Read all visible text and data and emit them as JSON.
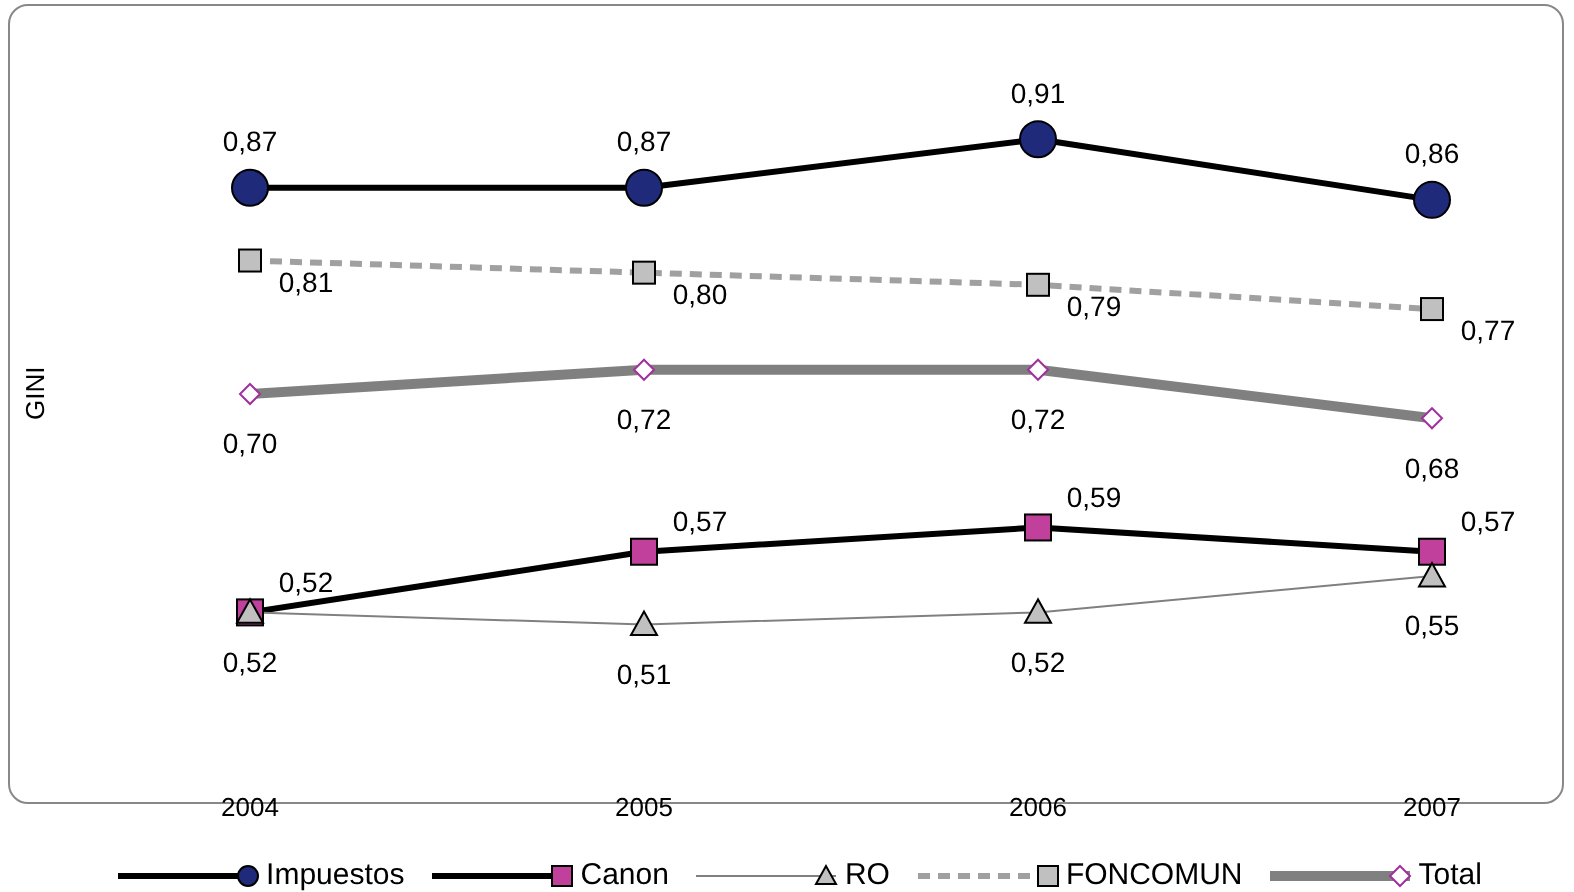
{
  "chart_data": {
    "type": "line",
    "ylabel": "GINI",
    "categories": [
      "2004",
      "2005",
      "2006",
      "2007"
    ],
    "tick_labels": "x",
    "legend": "bottom",
    "line_style": "solid",
    "series": [
      {
        "name": "Impuestos",
        "color": "#1f2a7a",
        "marker": "circle",
        "values": [
          0.87,
          0.87,
          0.91,
          0.86
        ],
        "value_labels": [
          "0,87",
          "0,87",
          "0,91",
          "0,86"
        ]
      },
      {
        "name": "Canon",
        "color": "#c0409c",
        "marker": "square",
        "values": [
          0.52,
          0.57,
          0.59,
          0.57
        ],
        "value_labels": [
          "0,52",
          "0,57",
          "0,59",
          "0,57"
        ]
      },
      {
        "name": "RO",
        "color": "#c0c0c0",
        "marker": "triangle",
        "values": [
          0.52,
          0.51,
          0.52,
          0.55
        ],
        "value_labels": [
          "0,52",
          "0,51",
          "0,52",
          "0,55"
        ]
      },
      {
        "name": "FONCOMUN",
        "color": "#c0c0c0",
        "marker": "square",
        "line_style": "dashed",
        "values": [
          0.81,
          0.8,
          0.79,
          0.77
        ],
        "value_labels": [
          "0,81",
          "0,80",
          "0,79",
          "0,77"
        ]
      },
      {
        "name": "Total",
        "color": "#a0309c",
        "marker": "diamond",
        "values": [
          0.7,
          0.72,
          0.72,
          0.68
        ],
        "value_labels": [
          "0,70",
          "0,72",
          "0,72",
          "0,68"
        ]
      }
    ]
  }
}
